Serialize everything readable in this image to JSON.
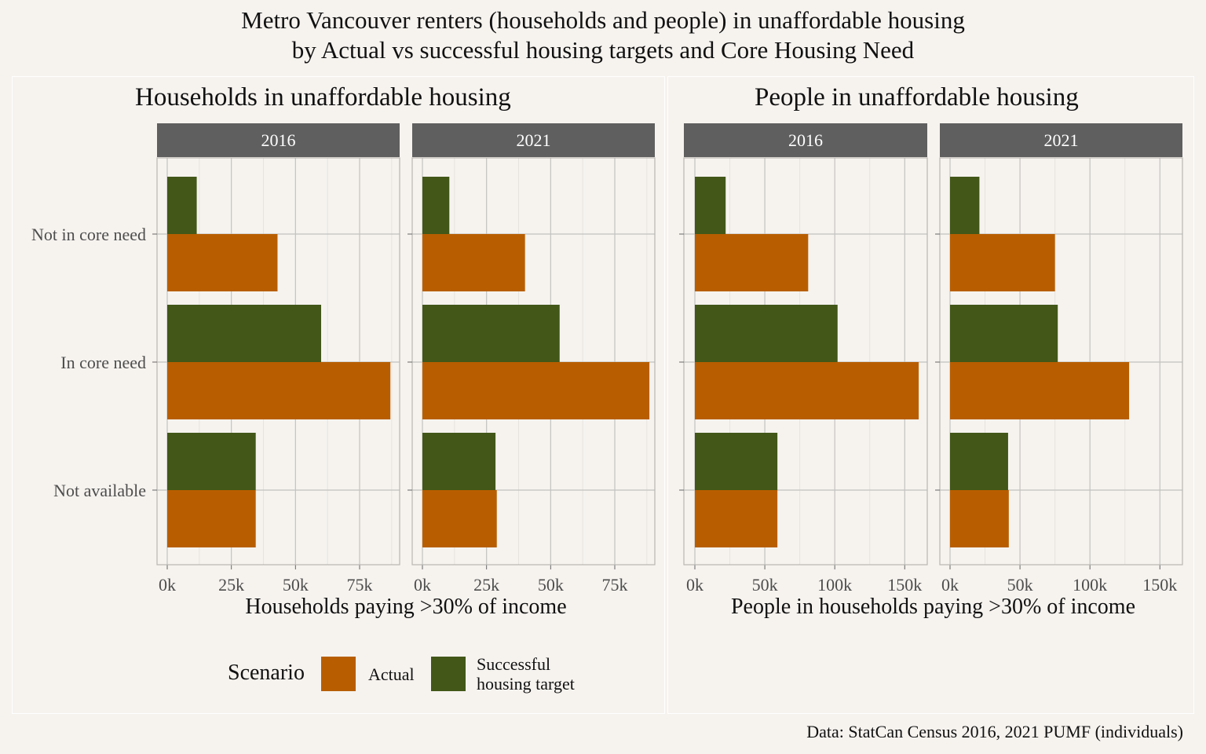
{
  "title_line1": "Metro Vancouver renters (households and people) in unaffordable housing",
  "title_line2": "by Actual vs successful housing targets and Core Housing Need",
  "caption": "Data: StatCan Census 2016, 2021 PUMF (individuals)",
  "legend": {
    "title": "Scenario",
    "items": [
      {
        "label": "Actual",
        "color": "#b85e00"
      },
      {
        "label_line1": "Successful",
        "label_line2": "housing target",
        "color": "#425718"
      }
    ]
  },
  "colors": {
    "actual": "#b85e00",
    "target": "#425718",
    "strip": "#5f5f5f"
  },
  "chart_data": [
    {
      "type": "bar",
      "orientation": "horizontal",
      "title": "Households in unaffordable housing",
      "xlabel": "Households paying >30% of income",
      "xlim": [
        0,
        90000
      ],
      "xticks": [
        0,
        25000,
        50000,
        75000
      ],
      "xtick_labels": [
        "0k",
        "25k",
        "50k",
        "75k"
      ],
      "categories": [
        "Not in core need",
        "In core need",
        "Not available"
      ],
      "facets": [
        {
          "label": "2016",
          "series": [
            {
              "name": "Actual",
              "values": [
                43000,
                87000,
                34500
              ]
            },
            {
              "name": "Successful housing target",
              "values": [
                11500,
                60000,
                34500
              ]
            }
          ]
        },
        {
          "label": "2021",
          "series": [
            {
              "name": "Actual",
              "values": [
                40000,
                88500,
                29000
              ]
            },
            {
              "name": "Successful housing target",
              "values": [
                10500,
                53500,
                28500
              ]
            }
          ]
        }
      ]
    },
    {
      "type": "bar",
      "orientation": "horizontal",
      "title": "People in unaffordable housing",
      "xlabel": "People in households paying >30% of income",
      "xlim": [
        0,
        165000
      ],
      "xticks": [
        0,
        50000,
        100000,
        150000
      ],
      "xtick_labels": [
        "0k",
        "50k",
        "100k",
        "150k"
      ],
      "categories": [
        "Not in core need",
        "In core need",
        "Not available"
      ],
      "facets": [
        {
          "label": "2016",
          "series": [
            {
              "name": "Actual",
              "values": [
                81000,
                160000,
                59000
              ]
            },
            {
              "name": "Successful housing target",
              "values": [
                22000,
                102000,
                59000
              ]
            }
          ]
        },
        {
          "label": "2021",
          "series": [
            {
              "name": "Actual",
              "values": [
                75000,
                128000,
                42000
              ]
            },
            {
              "name": "Successful housing target",
              "values": [
                21000,
                77000,
                41500
              ]
            }
          ]
        }
      ]
    }
  ]
}
